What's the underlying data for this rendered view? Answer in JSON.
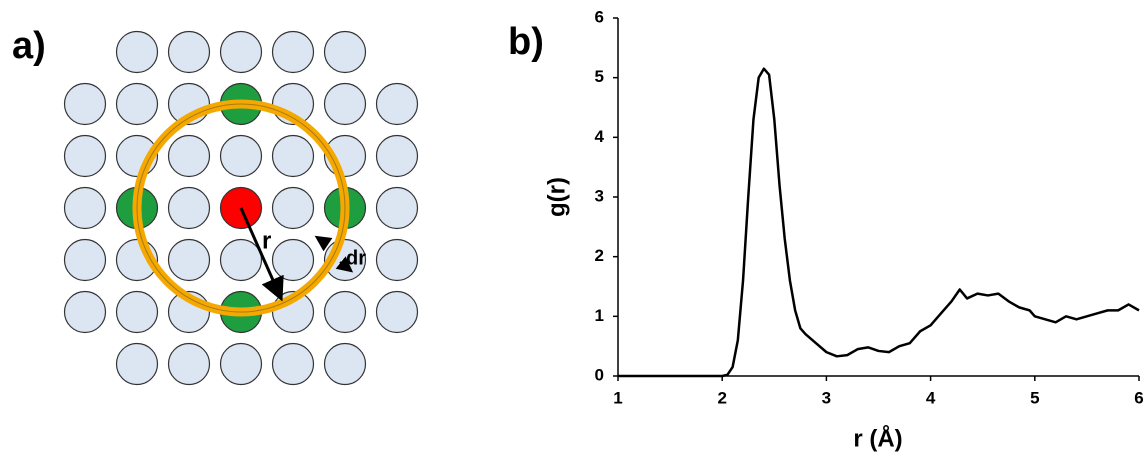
{
  "diagram": {
    "panel_label": "a)",
    "labels": [
      "r",
      "dr"
    ]
  },
  "chart_data": {
    "type": "line",
    "panel_label": "b)",
    "xlabel": "r (Å)",
    "ylabel": "g(r)",
    "x": [
      1.0,
      2.0,
      2.05,
      2.1,
      2.15,
      2.2,
      2.25,
      2.3,
      2.35,
      2.4,
      2.45,
      2.5,
      2.55,
      2.6,
      2.65,
      2.7,
      2.75,
      2.8,
      2.9,
      3.0,
      3.1,
      3.2,
      3.3,
      3.4,
      3.5,
      3.6,
      3.7,
      3.8,
      3.9,
      4.0,
      4.1,
      4.2,
      4.28,
      4.35,
      4.45,
      4.55,
      4.65,
      4.75,
      4.85,
      4.95,
      5.0,
      5.1,
      5.2,
      5.3,
      5.4,
      5.5,
      5.6,
      5.7,
      5.8,
      5.9,
      6.0
    ],
    "series": [
      {
        "name": "g(r)",
        "color": "#000000",
        "values": [
          0,
          0,
          0.02,
          0.15,
          0.6,
          1.6,
          3.0,
          4.3,
          5.0,
          5.15,
          5.05,
          4.3,
          3.2,
          2.3,
          1.6,
          1.1,
          0.8,
          0.7,
          0.55,
          0.4,
          0.33,
          0.35,
          0.45,
          0.48,
          0.42,
          0.4,
          0.5,
          0.55,
          0.75,
          0.85,
          1.05,
          1.25,
          1.45,
          1.3,
          1.38,
          1.35,
          1.38,
          1.25,
          1.15,
          1.1,
          1.0,
          0.95,
          0.9,
          1.0,
          0.95,
          1.0,
          1.05,
          1.1,
          1.1,
          1.2,
          1.1
        ]
      }
    ],
    "xlim": [
      1,
      6
    ],
    "xticks": [
      1,
      2,
      3,
      4,
      5,
      6
    ],
    "ylim": [
      0,
      6
    ],
    "yticks": [
      0,
      1,
      2,
      3,
      4,
      5,
      6
    ]
  }
}
